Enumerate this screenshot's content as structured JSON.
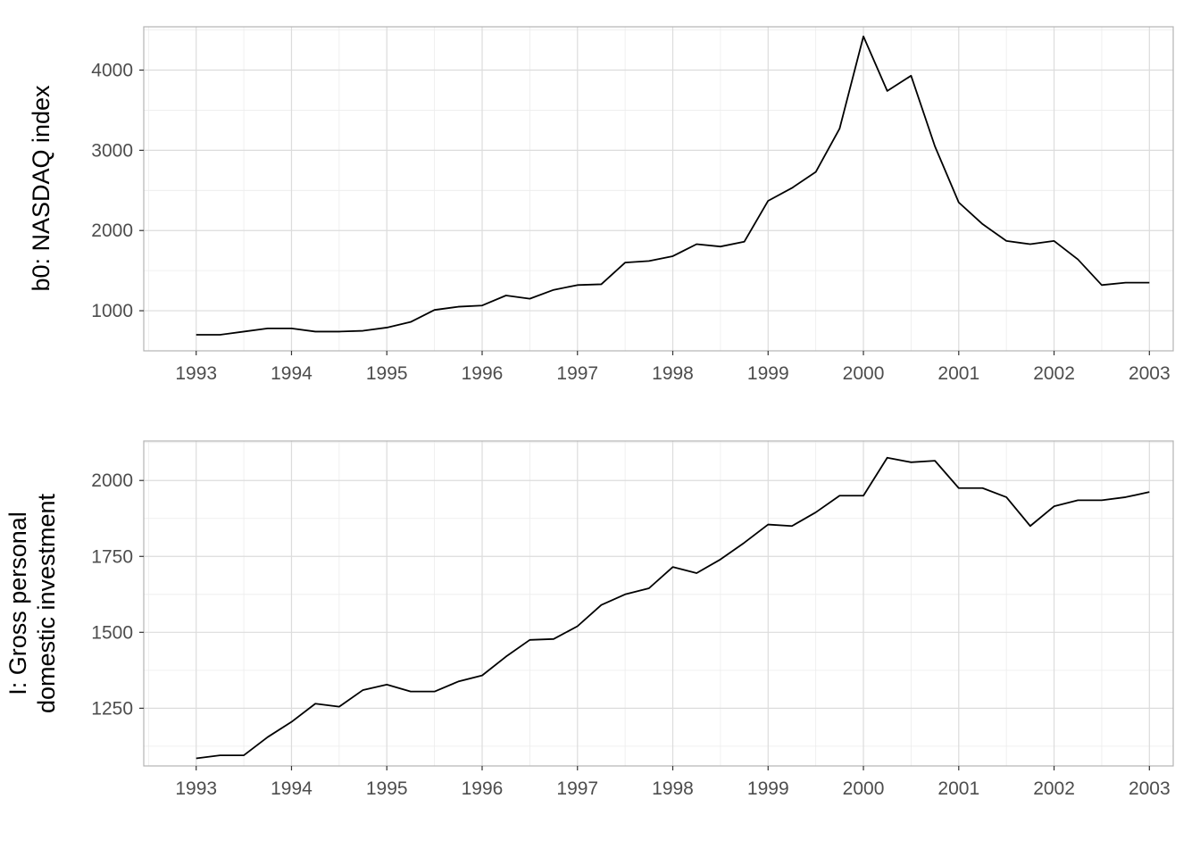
{
  "chart_data": [
    {
      "type": "line",
      "ylabel": "b0: NASDAQ index",
      "xlim": [
        1992.45,
        2003.25
      ],
      "ylim": [
        500,
        4540
      ],
      "xticks": [
        1993,
        1994,
        1995,
        1996,
        1997,
        1998,
        1999,
        2000,
        2001,
        2002,
        2003
      ],
      "yticks": [
        1000,
        2000,
        3000,
        4000
      ],
      "grid": true,
      "series": [
        {
          "x": [
            1993.0,
            1993.25,
            1993.5,
            1993.75,
            1994.0,
            1994.25,
            1994.5,
            1994.75,
            1995.0,
            1995.25,
            1995.5,
            1995.75,
            1996.0,
            1996.25,
            1996.5,
            1996.75,
            1997.0,
            1997.25,
            1997.5,
            1997.75,
            1998.0,
            1998.25,
            1998.5,
            1998.75,
            1999.0,
            1999.25,
            1999.5,
            1999.75,
            2000.0,
            2000.25,
            2000.5,
            2000.75,
            2001.0,
            2001.25,
            2001.5,
            2001.75,
            2002.0,
            2002.25,
            2002.5,
            2002.75,
            2003.0
          ],
          "values": [
            700,
            700,
            740,
            780,
            780,
            740,
            740,
            750,
            790,
            860,
            1010,
            1050,
            1065,
            1190,
            1150,
            1260,
            1320,
            1330,
            1600,
            1620,
            1680,
            1830,
            1800,
            1860,
            2370,
            2530,
            2730,
            3270,
            4420,
            3740,
            3930,
            3050,
            2350,
            2080,
            1870,
            1830,
            1870,
            1640,
            1320,
            1350,
            1350
          ]
        }
      ]
    },
    {
      "type": "line",
      "ylabel": "I: Gross personal domestic investment",
      "ylabel_lines": [
        "I: Gross personal",
        "domestic investment"
      ],
      "xlim": [
        1992.45,
        2003.25
      ],
      "ylim": [
        1060,
        2130
      ],
      "xticks": [
        1993,
        1994,
        1995,
        1996,
        1997,
        1998,
        1999,
        2000,
        2001,
        2002,
        2003
      ],
      "yticks": [
        1250,
        1500,
        1750,
        2000
      ],
      "grid": true,
      "series": [
        {
          "x": [
            1993.0,
            1993.25,
            1993.5,
            1993.75,
            1994.0,
            1994.25,
            1994.5,
            1994.75,
            1995.0,
            1995.25,
            1995.5,
            1995.75,
            1996.0,
            1996.25,
            1996.5,
            1996.75,
            1997.0,
            1997.25,
            1997.5,
            1997.75,
            1998.0,
            1998.25,
            1998.5,
            1998.75,
            1999.0,
            1999.25,
            1999.5,
            1999.75,
            2000.0,
            2000.25,
            2000.5,
            2000.75,
            2001.0,
            2001.25,
            2001.5,
            2001.75,
            2002.0,
            2002.25,
            2002.5,
            2002.75,
            2003.0
          ],
          "values": [
            1085,
            1095,
            1095,
            1155,
            1205,
            1265,
            1255,
            1310,
            1328,
            1305,
            1305,
            1338,
            1358,
            1420,
            1475,
            1478,
            1520,
            1590,
            1625,
            1645,
            1715,
            1695,
            1740,
            1795,
            1855,
            1850,
            1895,
            1950,
            1950,
            2075,
            2060,
            2065,
            1975,
            1975,
            1945,
            1850,
            1915,
            1935,
            1935,
            1945,
            1962
          ]
        }
      ]
    }
  ]
}
